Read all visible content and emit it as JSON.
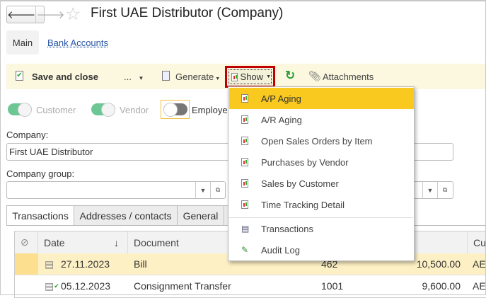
{
  "window": {
    "title": "First UAE Distributor (Company)"
  },
  "nav": {
    "back": "🡐",
    "forward": "🡒",
    "star": "☆"
  },
  "sections": {
    "main": "Main",
    "bank_accounts": "Bank Accounts"
  },
  "toolbar": {
    "save_close": "Save and close",
    "more": "...",
    "generate": "Generate",
    "show": "Show",
    "attachments": "Attachments"
  },
  "menu": {
    "items": [
      "A/P Aging",
      "A/R Aging",
      "Open Sales Orders by Item",
      "Purchases by Vendor",
      "Sales by Customer",
      "Time Tracking Detail"
    ],
    "extra": [
      "Transactions",
      "Audit Log"
    ],
    "highlight_color": "#f9c91f"
  },
  "toggles": {
    "customer": "Customer",
    "vendor": "Vendor",
    "employee": "Employe",
    "customer_on": true,
    "vendor_on": true,
    "employee_on": false
  },
  "form": {
    "company_label": "Company:",
    "company_value": "First UAE Distributor",
    "group_label": "Company group:",
    "group_value": ""
  },
  "tabs": [
    "Transactions",
    "Addresses / contacts",
    "General"
  ],
  "table": {
    "headers": {
      "date": "Date",
      "document": "Document",
      "currency": "Cur"
    },
    "rows": [
      {
        "date": "27.11.2023",
        "document": "Bill",
        "number": "462",
        "amount": "10,500.00",
        "currency": "AE"
      },
      {
        "date": "05.12.2023",
        "document": "Consignment Transfer",
        "number": "1001",
        "amount": "9,600.00",
        "currency": "AE"
      }
    ]
  }
}
